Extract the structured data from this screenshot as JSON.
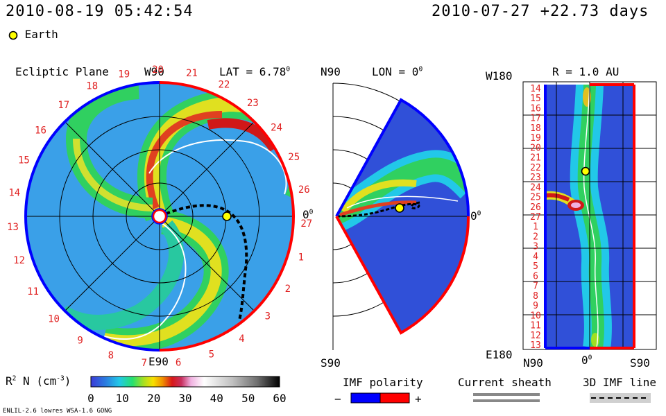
{
  "header": {
    "datetime": "2010-08-19 05:42:54",
    "reference": "2010-07-27 +22.73 days",
    "earth_label": "Earth"
  },
  "panels": {
    "ecliptic": {
      "title": "Ecliptic Plane",
      "top_label": "W90",
      "bottom_label": "E90",
      "right_label": "0",
      "right_sup": "0",
      "lat_label": "LAT = 6.78",
      "lat_sup": "0",
      "day_ticks": [
        "19",
        "20",
        "21",
        "22",
        "23",
        "24",
        "25",
        "26",
        "27",
        "1",
        "2",
        "3",
        "4",
        "5",
        "6",
        "7",
        "8",
        "9",
        "10",
        "11",
        "12",
        "13",
        "14",
        "15",
        "16",
        "17",
        "18"
      ]
    },
    "meridional": {
      "top_label": "N90",
      "bottom_label": "S90",
      "lon_label": "LON = 0",
      "lon_sup": "0",
      "right_label": "0",
      "right_sup": "0"
    },
    "radial": {
      "r_label": "R = 1.0 AU",
      "top_left_label": "W180",
      "bottom_left_label": "E180",
      "x_left": "N90",
      "x_mid": "0",
      "x_mid_sup": "0",
      "x_right": "S90",
      "day_ticks": [
        "14",
        "15",
        "16",
        "17",
        "18",
        "19",
        "20",
        "21",
        "22",
        "23",
        "24",
        "25",
        "26",
        "27",
        "1",
        "2",
        "3",
        "4",
        "5",
        "6",
        "7",
        "8",
        "9",
        "10",
        "11",
        "12",
        "13"
      ]
    }
  },
  "colorbar": {
    "label": "R  N (cm  )",
    "label_sup1": "2",
    "label_sup2": "-3",
    "ticks": [
      "0",
      "10",
      "20",
      "30",
      "40",
      "50",
      "60"
    ]
  },
  "imf_legend": {
    "title": "IMF polarity",
    "minus": "−",
    "plus": "+"
  },
  "sheath_legend": {
    "title": "Current sheath"
  },
  "imf_line_legend": {
    "title": "3D IMF line"
  },
  "footer": {
    "model": "ENLIL-2.6 lowres WSA-1.6 GONG"
  },
  "colors": {
    "background_wind": "#3aa0e8",
    "polarity_negative": "#0000ff",
    "polarity_positive": "#ff0000",
    "earth_marker": "#ffff00",
    "tick_text": "#e02020"
  },
  "chart_data": {
    "type": "heatmap",
    "quantity": "R^2 N (cm^-3)",
    "colorbar_range": [
      0,
      60
    ],
    "earth": {
      "lat": 6.78,
      "lon": 0,
      "r_au": 1.0
    },
    "datetime": "2010-08-19 05:42:54",
    "reference_date": "2010-07-27",
    "elapsed_days": 22.73
  }
}
